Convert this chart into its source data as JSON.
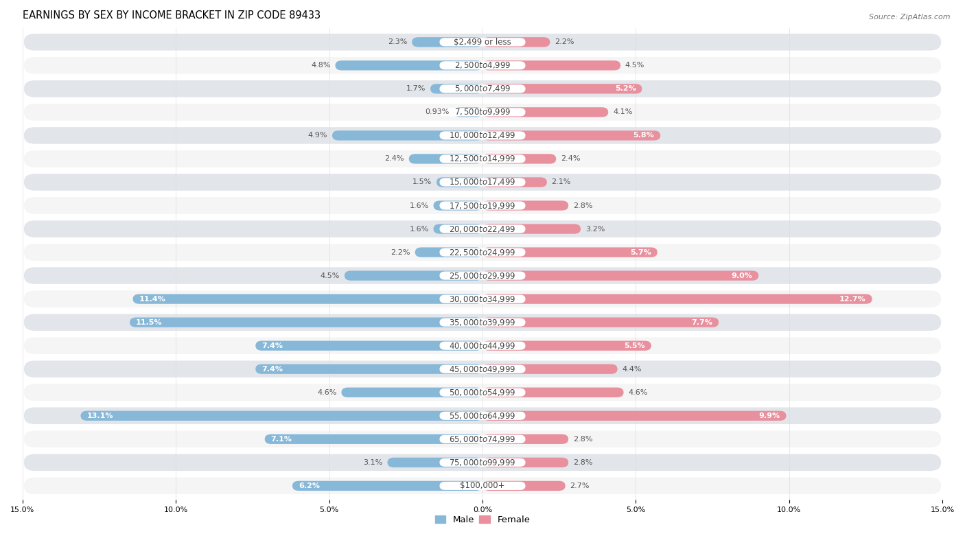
{
  "title": "EARNINGS BY SEX BY INCOME BRACKET IN ZIP CODE 89433",
  "source": "Source: ZipAtlas.com",
  "categories": [
    "$2,499 or less",
    "$2,500 to $4,999",
    "$5,000 to $7,499",
    "$7,500 to $9,999",
    "$10,000 to $12,499",
    "$12,500 to $14,999",
    "$15,000 to $17,499",
    "$17,500 to $19,999",
    "$20,000 to $22,499",
    "$22,500 to $24,999",
    "$25,000 to $29,999",
    "$30,000 to $34,999",
    "$35,000 to $39,999",
    "$40,000 to $44,999",
    "$45,000 to $49,999",
    "$50,000 to $54,999",
    "$55,000 to $64,999",
    "$65,000 to $74,999",
    "$75,000 to $99,999",
    "$100,000+"
  ],
  "male_values": [
    2.3,
    4.8,
    1.7,
    0.93,
    4.9,
    2.4,
    1.5,
    1.6,
    1.6,
    2.2,
    4.5,
    11.4,
    11.5,
    7.4,
    7.4,
    4.6,
    13.1,
    7.1,
    3.1,
    6.2
  ],
  "female_values": [
    2.2,
    4.5,
    5.2,
    4.1,
    5.8,
    2.4,
    2.1,
    2.8,
    3.2,
    5.7,
    9.0,
    12.7,
    7.7,
    5.5,
    4.4,
    4.6,
    9.9,
    2.8,
    2.8,
    2.7
  ],
  "male_color": "#87b8d8",
  "female_color": "#e8909e",
  "male_label": "Male",
  "female_label": "Female",
  "background_color": "#ffffff",
  "row_light_color": "#f5f5f5",
  "row_dark_color": "#e2e5ea",
  "xlim": 15.0,
  "title_fontsize": 10.5,
  "label_fontsize": 9,
  "value_fontsize": 8,
  "source_fontsize": 8
}
